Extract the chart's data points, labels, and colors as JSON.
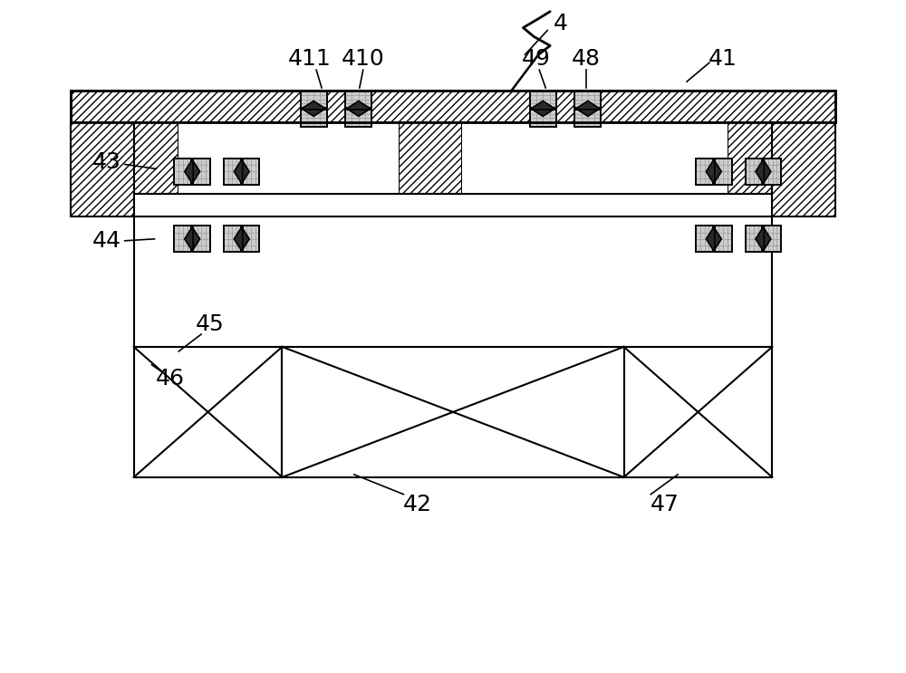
{
  "background": "#ffffff",
  "line_color": "#000000",
  "label_fontsize": 18,
  "figsize": [
    10.0,
    7.43
  ],
  "dpi": 100
}
